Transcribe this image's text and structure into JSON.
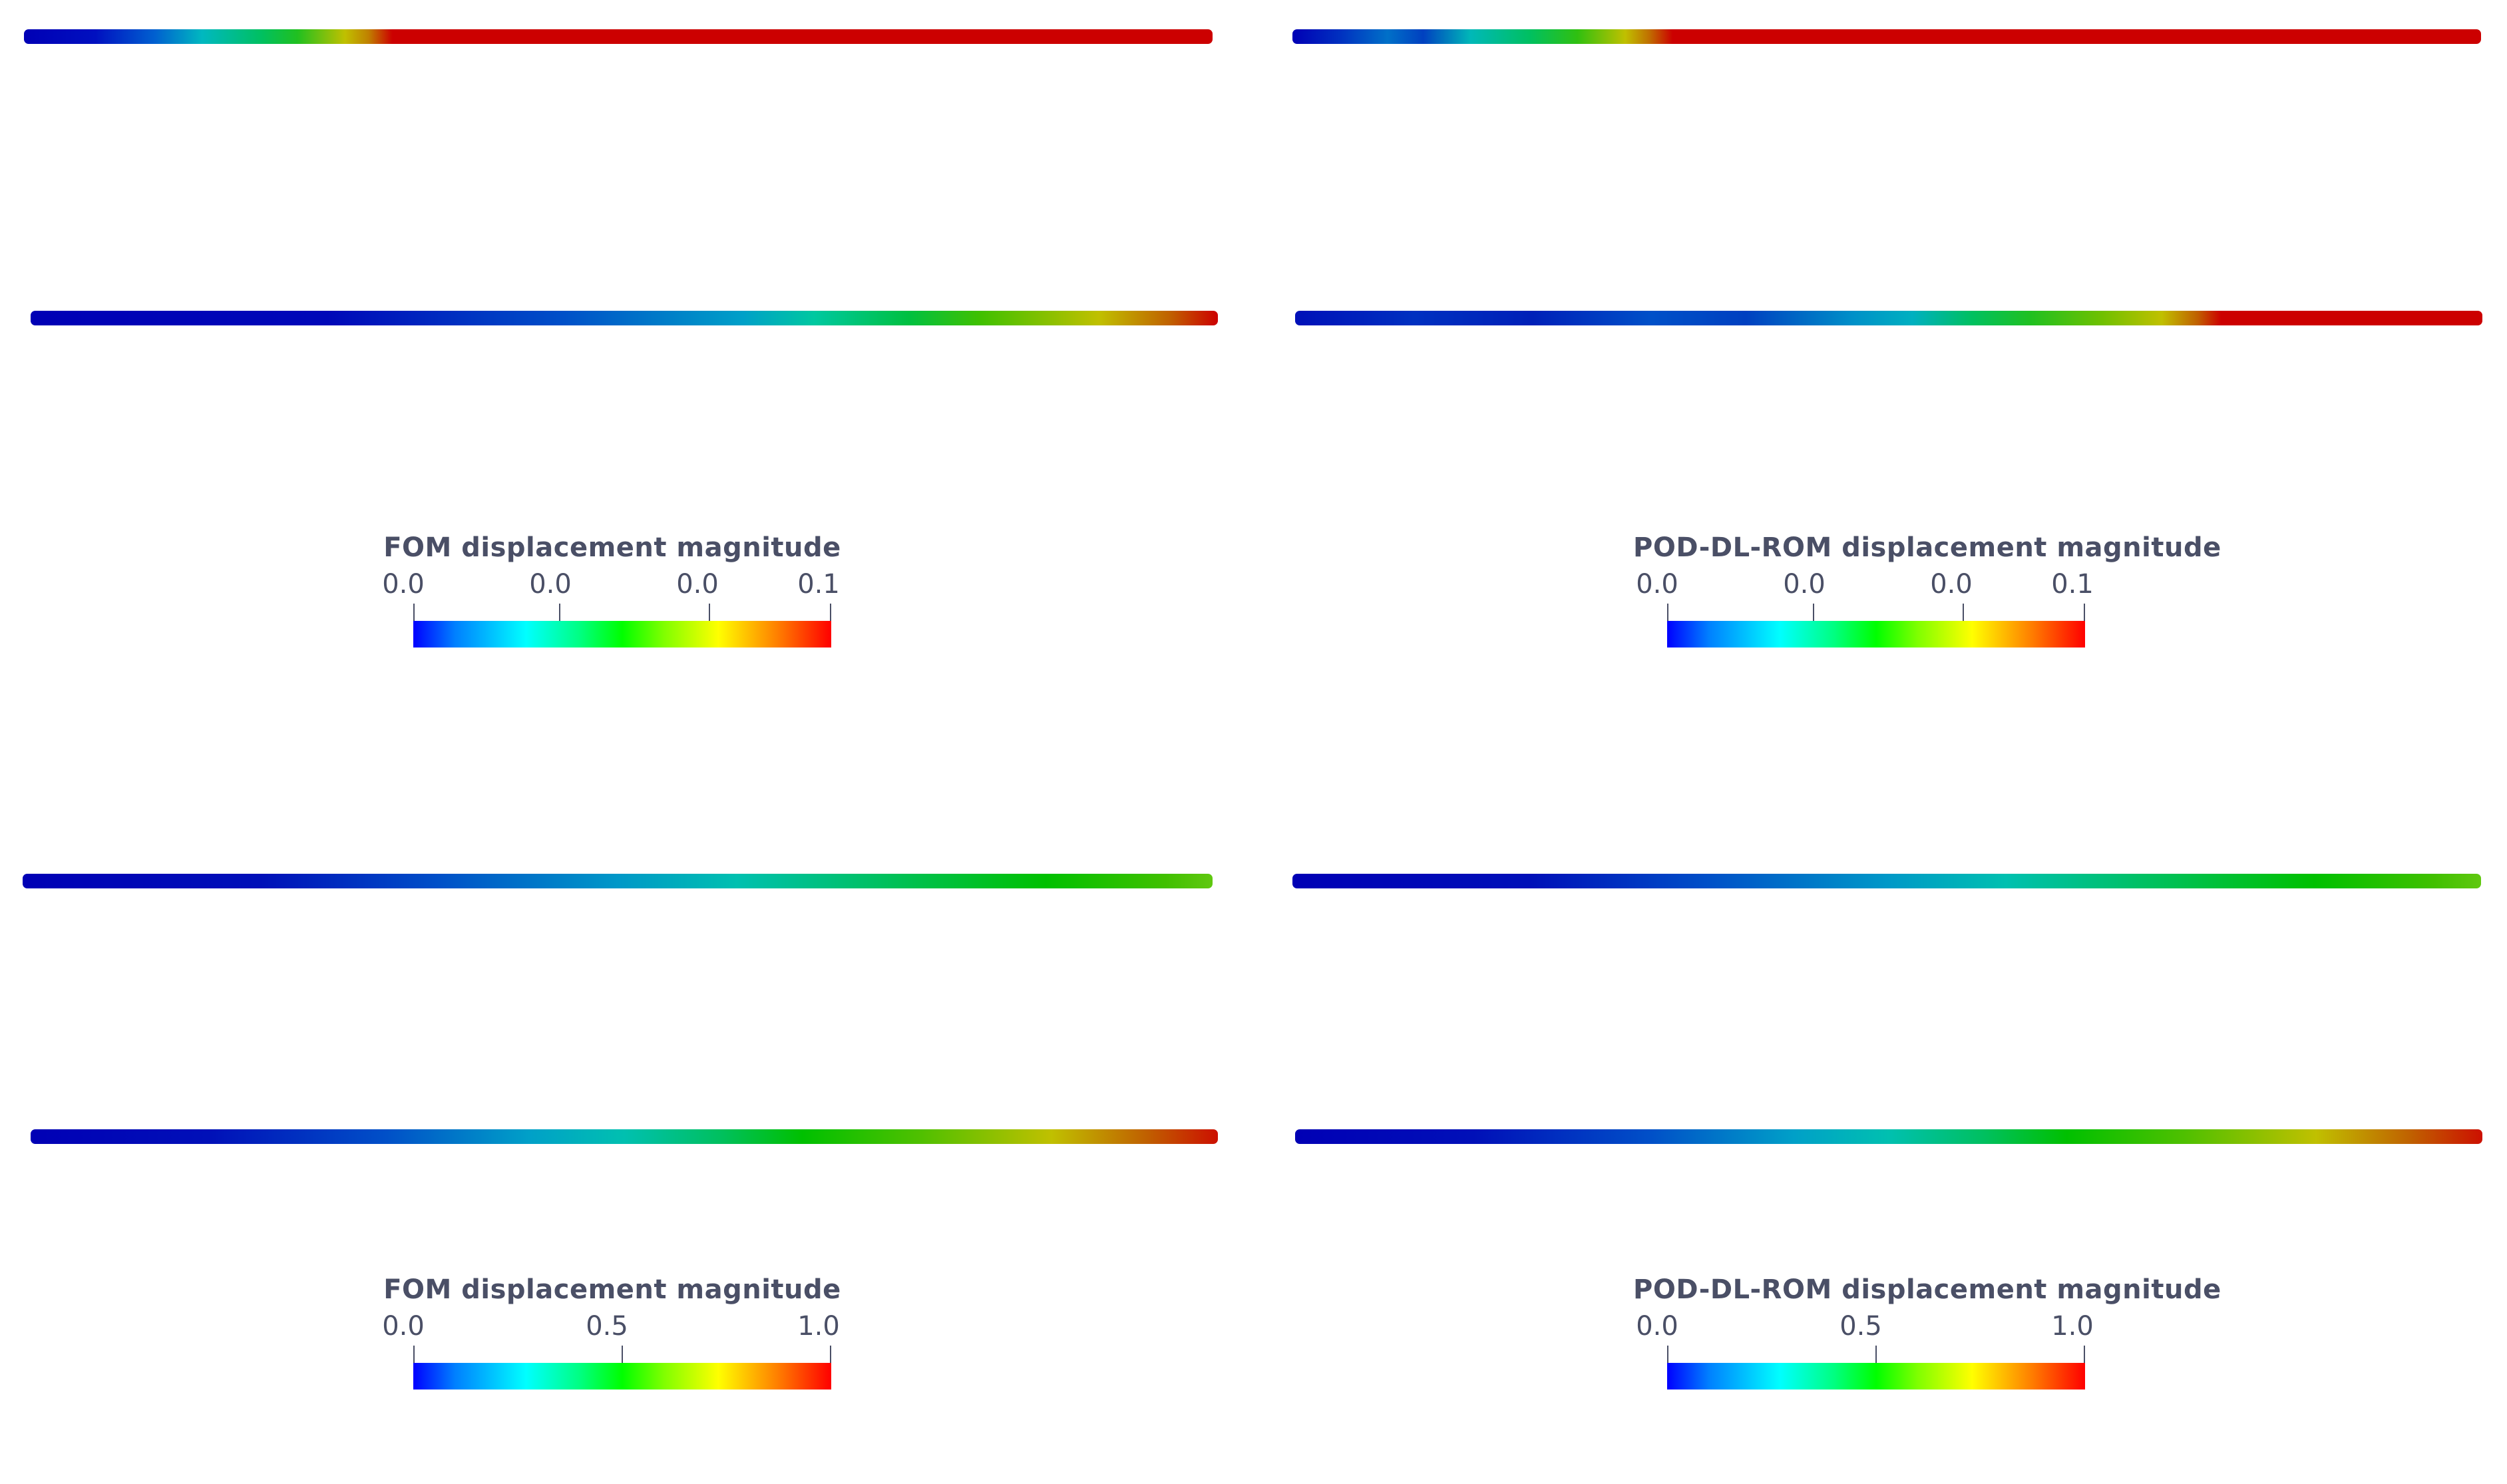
{
  "panels": {
    "fom_top": {
      "colorbar_title": "FOM displacement magnitude",
      "tick_labels": [
        "0.0",
        "0.0",
        "0.0",
        "0.1"
      ]
    },
    "rom_top": {
      "colorbar_title": "POD-DL-ROM displacement magnitude",
      "tick_labels": [
        "0.0",
        "0.0",
        "0.0",
        "0.1"
      ]
    },
    "fom_bottom": {
      "colorbar_title": "FOM displacement magnitude",
      "tick_labels": [
        "0.0",
        "0.5",
        "1.0"
      ]
    },
    "rom_bottom": {
      "colorbar_title": "POD-DL-ROM displacement magnitude",
      "tick_labels": [
        "0.0",
        "0.5",
        "1.0"
      ]
    }
  },
  "colormap": [
    "#0000ff",
    "#00ffff",
    "#00ff00",
    "#ffff00",
    "#ff0000"
  ]
}
